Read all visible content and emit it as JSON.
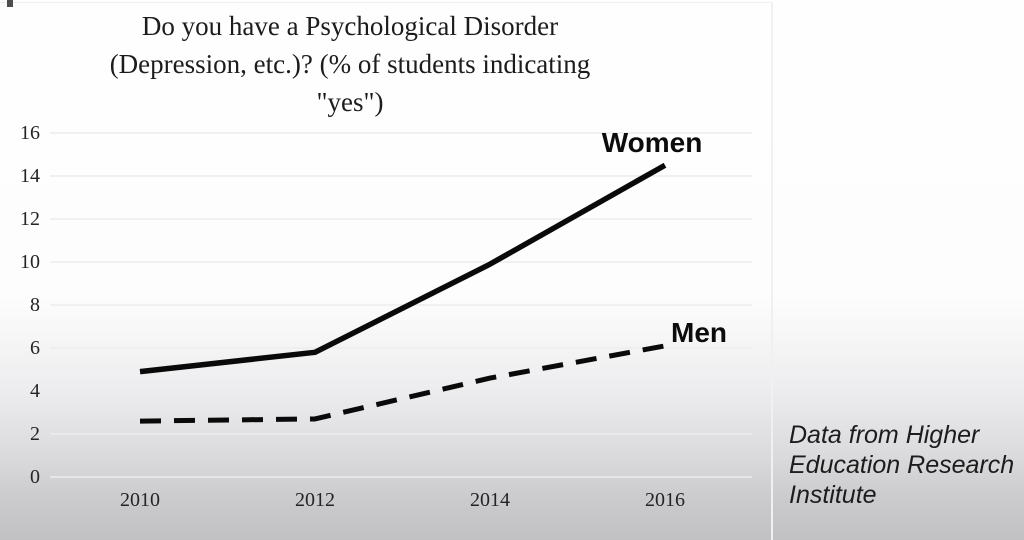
{
  "slide": {
    "background_top": "#fefefe",
    "background_bottom": "#c1c1c3",
    "divider_color": "#f0f0f0"
  },
  "chart_data": {
    "type": "line",
    "title": "Do you have a Psychological Disorder (Depression, etc.)? (% of students indicating \"yes\")",
    "title_lines": [
      "Do you have a Psychological Disorder",
      "(Depression, etc.)? (% of students indicating",
      "\"yes\")"
    ],
    "xlabel": "",
    "ylabel": "",
    "categories": [
      2010,
      2012,
      2014,
      2016
    ],
    "x_tick_labels": [
      "2010",
      "2012",
      "2014",
      "2016"
    ],
    "y_ticks": [
      0,
      2,
      4,
      6,
      8,
      10,
      12,
      14,
      16
    ],
    "ylim": [
      0,
      16
    ],
    "grid": "horizontal",
    "gridline_color": "#ececec",
    "line_color": "#0a0a0a",
    "legend_position": "end-of-line-labels",
    "series": [
      {
        "name": "Women",
        "style": "solid",
        "values": [
          4.9,
          5.8,
          9.9,
          14.5
        ]
      },
      {
        "name": "Men",
        "style": "dashed",
        "values": [
          2.6,
          2.7,
          4.6,
          6.1
        ]
      }
    ]
  },
  "caption": {
    "text": "Data from Higher Education Research Institute",
    "lines": [
      "Data from Higher",
      "Education Research",
      "Institute"
    ]
  }
}
